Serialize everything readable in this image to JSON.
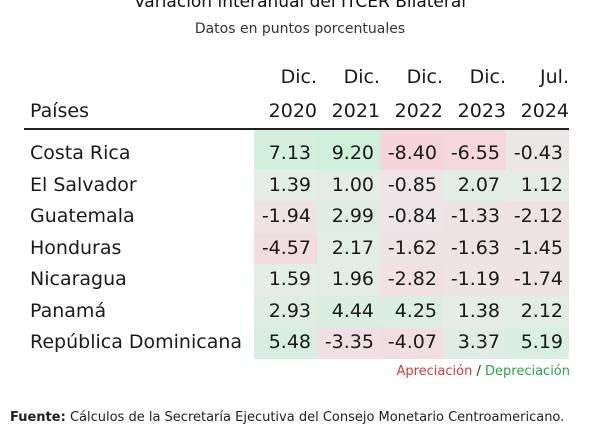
{
  "title": "Variación interanual del ITCER Bilateral",
  "subtitle": "Datos en puntos porcentuales",
  "table": {
    "country_header": "Países",
    "columns": [
      {
        "line1": "Dic.",
        "line2": "2020"
      },
      {
        "line1": "Dic.",
        "line2": "2021"
      },
      {
        "line1": "Dic.",
        "line2": "2022"
      },
      {
        "line1": "Dic.",
        "line2": "2023"
      },
      {
        "line1": "Jul.",
        "line2": "2024"
      }
    ],
    "rows": [
      {
        "country": "Costa Rica",
        "values": [
          "7.13",
          "9.20",
          "-8.40",
          "-6.55",
          "-0.43"
        ]
      },
      {
        "country": "El Salvador",
        "values": [
          "1.39",
          "1.00",
          "-0.85",
          "2.07",
          "1.12"
        ]
      },
      {
        "country": "Guatemala",
        "values": [
          "-1.94",
          "2.99",
          "-0.84",
          "-1.33",
          "-2.12"
        ]
      },
      {
        "country": "Honduras",
        "values": [
          "-4.57",
          "2.17",
          "-1.62",
          "-1.63",
          "-1.45"
        ]
      },
      {
        "country": "Nicaragua",
        "values": [
          "1.59",
          "1.96",
          "-2.82",
          "-1.19",
          "-1.74"
        ]
      },
      {
        "country": "Panamá",
        "values": [
          "2.93",
          "4.44",
          "4.25",
          "1.38",
          "2.12"
        ]
      },
      {
        "country": "República Dominicana",
        "values": [
          "5.48",
          "-3.35",
          "-4.07",
          "3.37",
          "5.19"
        ]
      }
    ]
  },
  "legend": {
    "appreciation": "Apreciación",
    "separator": "/",
    "depreciation": "Depreciación",
    "appreciation_color": "#d43a3a",
    "depreciation_color": "#26a64a"
  },
  "footer": {
    "label": "Fuente:",
    "text": "Cálculos de la Secretaría Ejecutiva del Consejo Monetario Centroamericano."
  }
}
